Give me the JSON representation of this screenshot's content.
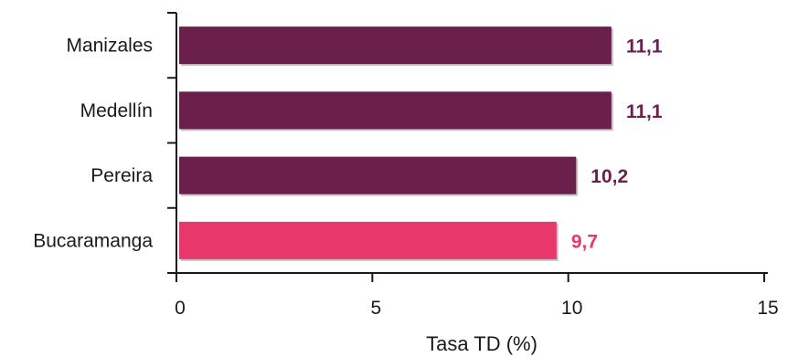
{
  "chart_data": {
    "type": "bar",
    "orientation": "horizontal",
    "categories": [
      "Manizales",
      "Medellín",
      "Pereira",
      "Bucaramanga"
    ],
    "values": [
      11.1,
      11.1,
      10.2,
      9.7
    ],
    "value_labels": [
      "11,1",
      "11,1",
      "10,2",
      "9,7"
    ],
    "bar_colors": [
      "#6b1f4b",
      "#6b1f4b",
      "#6b1f4b",
      "#e8376b"
    ],
    "label_colors": [
      "#6b1f4b",
      "#6b1f4b",
      "#6b1f4b",
      "#e8376b"
    ],
    "xlabel": "Tasa TD (%)",
    "ylabel": "",
    "title": "",
    "xlim": [
      0,
      15
    ],
    "xticks": [
      0,
      5,
      10,
      15
    ],
    "grid": false,
    "legend": "none"
  }
}
